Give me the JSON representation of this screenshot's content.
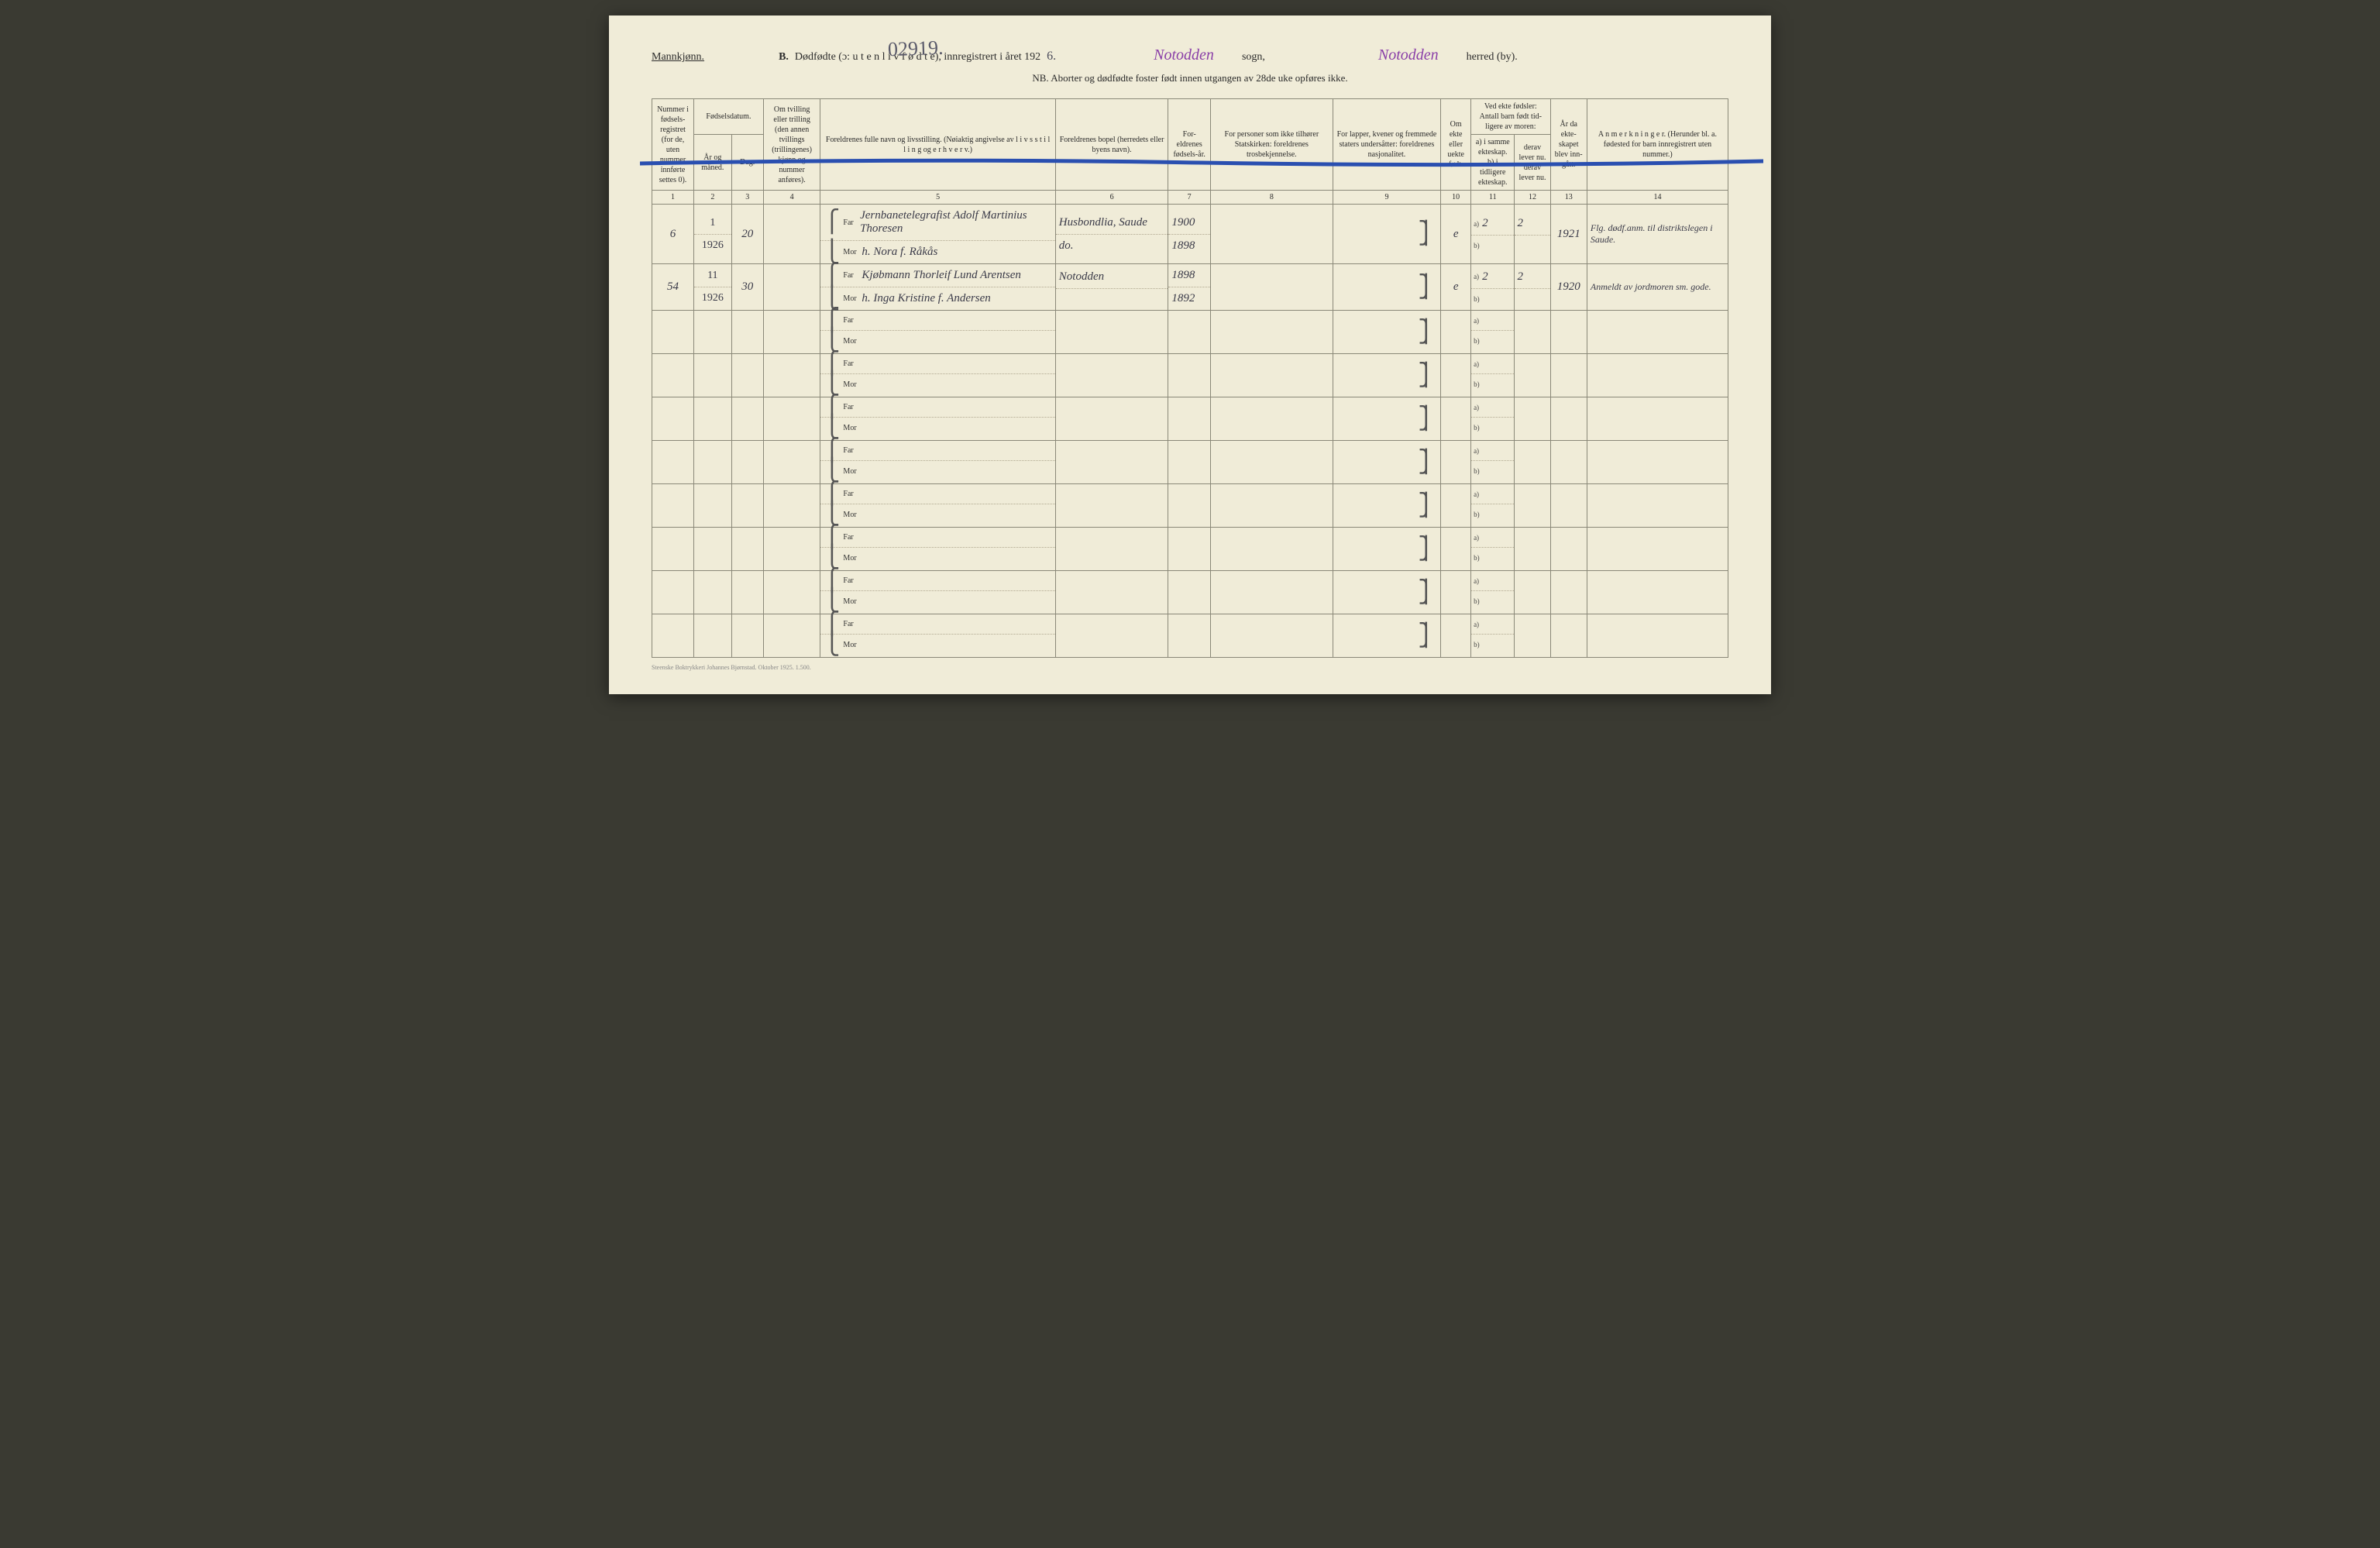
{
  "header": {
    "gender": "Mannkjønn.",
    "section_letter": "B.",
    "title_main": "Dødfødte (ɔ: u t e n  l i v  f ø d t e),  innregistrert i året 192",
    "year_suffix": "6.",
    "serial_handwritten": "02919.",
    "sogn_value": "Notodden",
    "sogn_label": "sogn,",
    "herred_value": "Notodden",
    "herred_label": "herred (by).",
    "subheader": "NB.  Aborter og dødfødte foster født innen utgangen av 28de uke opføres ikke."
  },
  "columns": {
    "c1": "Nummer i fødsels-registret (for de, uten nummer innførte settes 0).",
    "c2_group": "Fødselsdatum.",
    "c2": "År og måned.",
    "c3": "Dag.",
    "c4": "Om tvilling eller trilling (den annen tvillings (trillingenes) kjønn og nummer anføres).",
    "c5": "Foreldrenes fulle navn og livsstilling. (Nøiaktig angivelse av l i v s s t i l l i n g  og  e r h v e r v.)",
    "c6": "Foreldrenes bopel (herredets eller byens navn).",
    "c7": "For-eldrenes fødsels-år.",
    "c8": "For personer som ikke tilhører Statskirken: foreldrenes trosbekjennelse.",
    "c9": "For lapper, kvener og fremmede staters undersåtter: foreldrenes nasjonalitet.",
    "c10": "Om ekte eller uekte født.",
    "c11_group": "Ved ekte fødsler: Antall barn født tid-ligere av moren:",
    "c11": "a) i samme ekteskap. b) i tidligere ekteskap.",
    "c12": "derav lever nu. derav lever nu.",
    "c13": "År da ekte-skapet blev inn-gått.",
    "c14": "A n m e r k n i n g e r. (Herunder bl. a. fødested for barn innregistrert uten nummer.)"
  },
  "col_nums": [
    "1",
    "2",
    "3",
    "4",
    "5",
    "6",
    "7",
    "8",
    "9",
    "10",
    "11",
    "12",
    "13",
    "14"
  ],
  "parent_labels": {
    "far": "Far",
    "mor": "Mor"
  },
  "ab_labels": {
    "a": "a)",
    "b": "b)"
  },
  "rows": [
    {
      "num": "6",
      "month_top": "1",
      "month_bot": "1926",
      "day": "20",
      "far_name": "Jernbanetelegrafist Adolf Martinius Thoresen",
      "mor_name": "h. Nora f. Råkås",
      "bopel_far": "Husbondlia, Saude",
      "bopel_mor": "do.",
      "year_far": "1900",
      "year_mor": "1898",
      "ekte": "e",
      "a_val": "2",
      "a_lever": "2",
      "ekteskap_aar": "1921",
      "anm": "Flg. dødf.anm. til distriktslegen i Saude."
    },
    {
      "num": "54",
      "month_top": "11",
      "month_bot": "1926",
      "day": "30",
      "far_name": "Kjøbmann Thorleif Lund Arentsen",
      "mor_name": "h. Inga Kristine f. Andersen",
      "bopel_far": "Notodden",
      "bopel_mor": "",
      "year_far": "1898",
      "year_mor": "1892",
      "ekte": "e",
      "a_val": "2",
      "a_lever": "2",
      "ekteskap_aar": "1920",
      "anm": "Anmeldt av jordmoren sm. gode."
    }
  ],
  "footer": "Steenske Boktrykkeri Johannes Bjørnstad.   Oktober 1925.   1.500.",
  "colors": {
    "paper": "#f0ecd8",
    "ink": "#2a2a2a",
    "handwriting": "#3a3a48",
    "purple": "#8a3fa8",
    "blue_strike": "#2a4fb0",
    "border": "#8a8878"
  }
}
